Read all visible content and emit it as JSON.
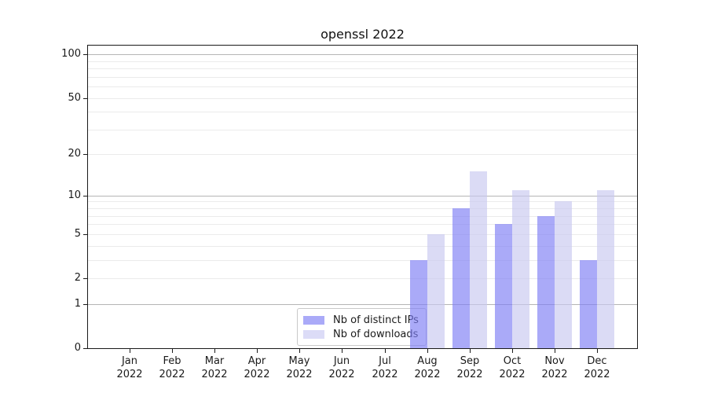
{
  "figure": {
    "background": "#ffffff",
    "spine_color": "#1a1a1a"
  },
  "chart_data": {
    "type": "bar",
    "title": "openssl 2022",
    "x_tick_labels": [
      [
        "Jan",
        "2022"
      ],
      [
        "Feb",
        "2022"
      ],
      [
        "Mar",
        "2022"
      ],
      [
        "Apr",
        "2022"
      ],
      [
        "May",
        "2022"
      ],
      [
        "Jun",
        "2022"
      ],
      [
        "Jul",
        "2022"
      ],
      [
        "Aug",
        "2022"
      ],
      [
        "Sep",
        "2022"
      ],
      [
        "Oct",
        "2022"
      ],
      [
        "Nov",
        "2022"
      ],
      [
        "Dec",
        "2022"
      ]
    ],
    "series": [
      {
        "name": "Nb of distinct IPs",
        "color": "rgba(124,124,244,0.65)",
        "legend_color": "#aaaaf8",
        "values": [
          0,
          0,
          0,
          0,
          0,
          0,
          0,
          3,
          8,
          6,
          7,
          3
        ]
      },
      {
        "name": "Nb of downloads",
        "color": "rgba(200,200,240,0.65)",
        "legend_color": "#dcdcf7",
        "values": [
          0,
          0,
          0,
          0,
          0,
          0,
          0,
          5,
          15,
          11,
          9,
          11
        ]
      }
    ],
    "y_axis": {
      "scale": "log1p",
      "ticks": [
        0,
        1,
        2,
        5,
        10,
        20,
        50,
        100
      ],
      "ylim": [
        0,
        112
      ]
    },
    "grid": {
      "major_values": [
        1,
        10,
        100
      ],
      "minor_values": [
        2,
        3,
        4,
        5,
        6,
        7,
        8,
        9,
        20,
        30,
        40,
        50,
        60,
        70,
        80,
        90
      ],
      "major_color": "#b5b5b5",
      "minor_color": "#ebebeb"
    },
    "legend_position": "lower center"
  }
}
